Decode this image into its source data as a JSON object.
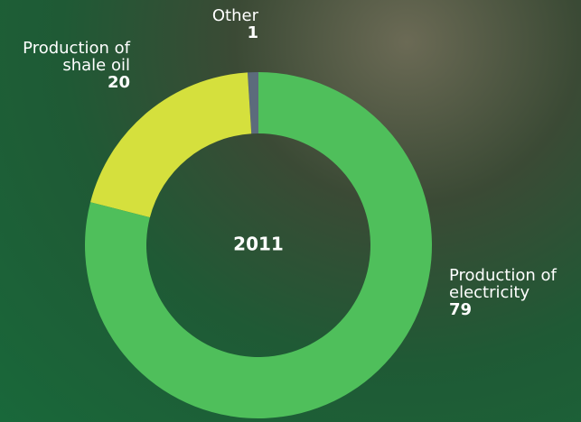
{
  "chart_data": {
    "type": "donut",
    "title": "2011",
    "categories": [
      "Production of electricity",
      "Production of shale oil",
      "Other"
    ],
    "values": [
      79,
      20,
      1
    ],
    "colors": [
      "#4fbf5b",
      "#d5e03d",
      "#5c6b7c"
    ]
  }
}
